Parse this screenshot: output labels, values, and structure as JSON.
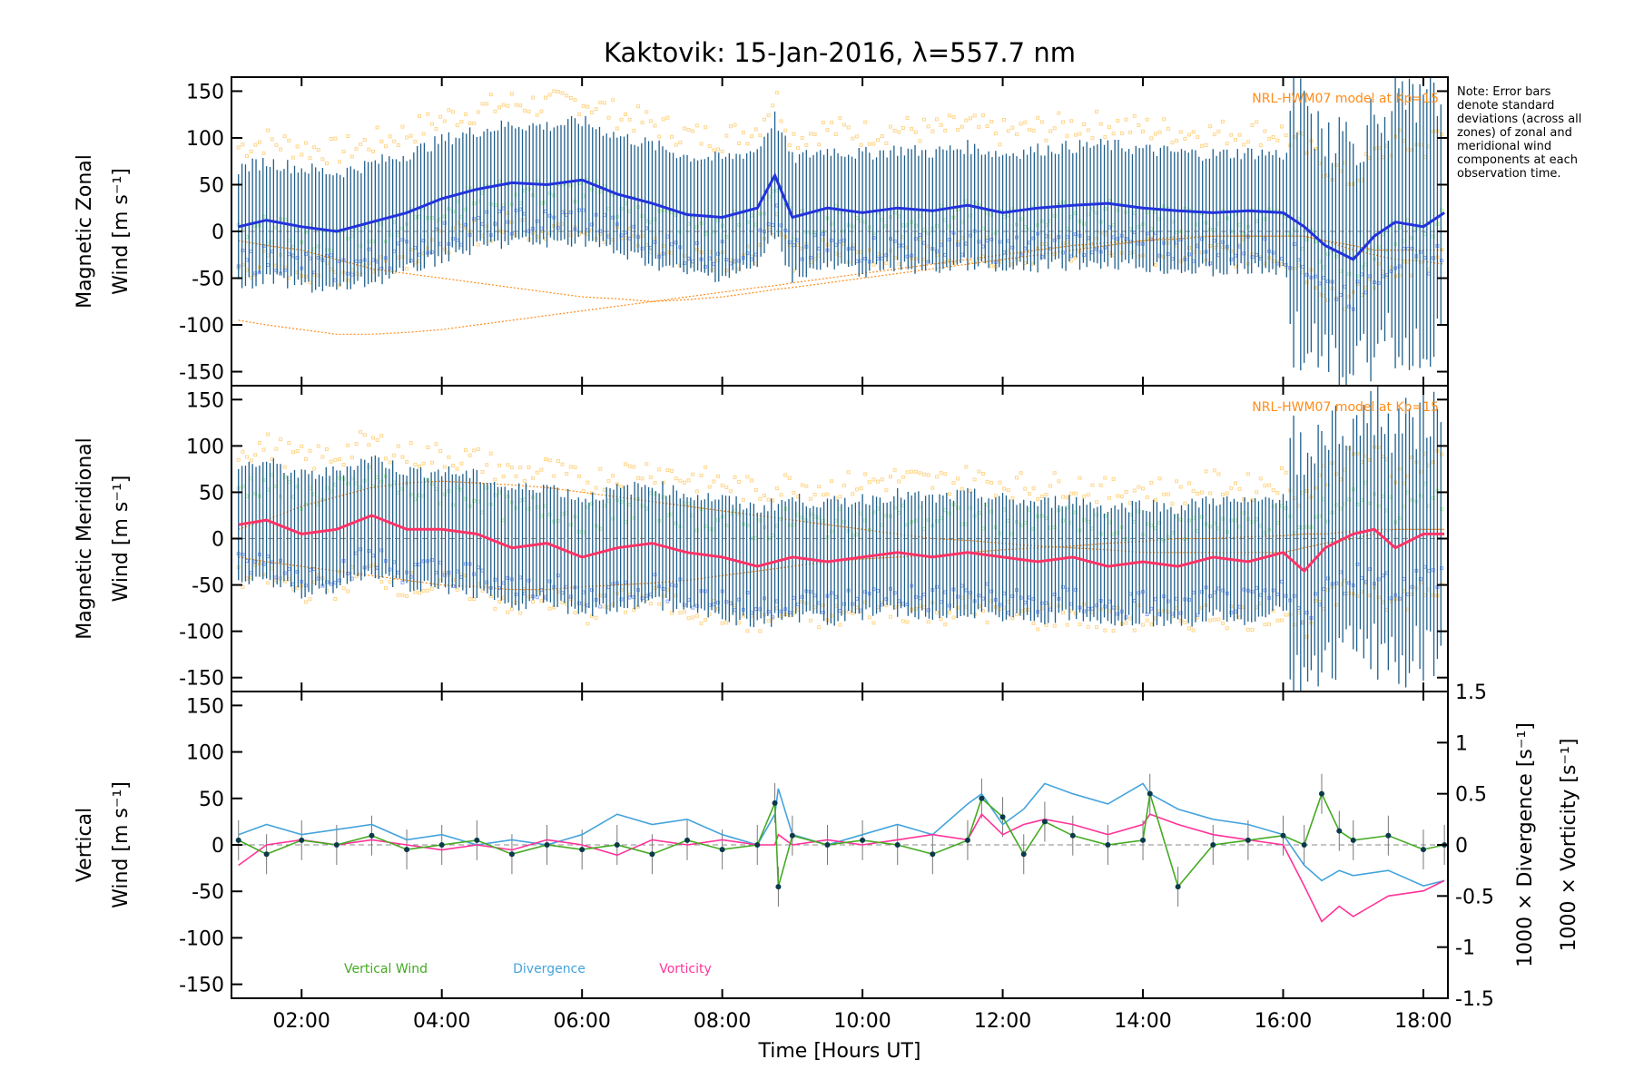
{
  "colors": {
    "zonal": "#2233dd",
    "meridional": "#ff3366",
    "error_bar": "#1f5f8b",
    "model": "#ff8c1a",
    "zone_yellow": "#ffd68a",
    "zone_green": "#b8f0b0",
    "zone_blue": "#8aa8ff",
    "vertical": "#44aa22",
    "divergence": "#44a3dd",
    "vorticity": "#ff3399",
    "axis": "#000000",
    "zero_line": "#888888"
  },
  "chart_data": [
    {
      "type": "line",
      "panel": "zonal",
      "title": "Kaktovik: 15-Jan-2016, λ=557.7 nm",
      "ylabel": "Magnetic Zonal",
      "ylabel_units": "Wind [m s⁻¹]",
      "ylim": [
        -165,
        165
      ],
      "yticks": [
        150,
        100,
        50,
        0,
        -50,
        -100,
        -150
      ],
      "model_label": "NRL-HWM07 model at Kp=15",
      "x": [
        1.1,
        1.5,
        2.0,
        2.5,
        3.0,
        3.5,
        4.0,
        4.5,
        5.0,
        5.5,
        6.0,
        6.5,
        7.0,
        7.5,
        8.0,
        8.5,
        8.75,
        9.0,
        9.5,
        10.0,
        10.5,
        11.0,
        11.5,
        12.0,
        12.5,
        13.0,
        13.5,
        14.0,
        14.5,
        15.0,
        15.5,
        16.0,
        16.3,
        16.6,
        17.0,
        17.3,
        17.6,
        18.0,
        18.3
      ],
      "series": [
        {
          "values": [
            5,
            12,
            5,
            0,
            10,
            20,
            35,
            45,
            52,
            50,
            55,
            40,
            30,
            18,
            15,
            25,
            60,
            15,
            25,
            20,
            25,
            22,
            28,
            20,
            25,
            28,
            30,
            25,
            22,
            20,
            22,
            20,
            5,
            -15,
            -30,
            -5,
            10,
            5,
            20
          ]
        }
      ],
      "model_curves": [
        [
          -95,
          -100,
          -105,
          -110,
          -110,
          -108,
          -105,
          -100,
          -95,
          -90,
          -85,
          -80,
          -75,
          -70,
          -65,
          -60,
          -58,
          -55,
          -50,
          -45,
          -40,
          -35,
          -30,
          -25,
          -20,
          -15,
          -12,
          -10,
          -8,
          -5,
          -5,
          -5,
          -5,
          -10,
          -20,
          -25,
          -30,
          -32,
          -35
        ],
        [
          -10,
          -15,
          -20,
          -30,
          -40,
          -45,
          -50,
          -55,
          -60,
          -65,
          -70,
          -72,
          -75,
          -73,
          -70,
          -65,
          -62,
          -60,
          -55,
          -50,
          -45,
          -40,
          -35,
          -30,
          -25,
          -20,
          -15,
          -10,
          -5,
          -5,
          -5,
          -5,
          -5,
          -10,
          -15,
          -20,
          -20,
          -20,
          -20
        ]
      ]
    },
    {
      "type": "line",
      "panel": "meridional",
      "ylabel": "Magnetic Meridional",
      "ylabel_units": "Wind [m s⁻¹]",
      "ylim": [
        -165,
        165
      ],
      "yticks": [
        150,
        100,
        50,
        0,
        -50,
        -100,
        -150
      ],
      "model_label": "NRL-HWM07 model at Kp=15",
      "x": [
        1.1,
        1.5,
        2.0,
        2.5,
        3.0,
        3.5,
        4.0,
        4.5,
        5.0,
        5.5,
        6.0,
        6.5,
        7.0,
        7.5,
        8.0,
        8.5,
        9.0,
        9.5,
        10.0,
        10.5,
        11.0,
        11.5,
        12.0,
        12.5,
        13.0,
        13.5,
        14.0,
        14.5,
        15.0,
        15.5,
        16.0,
        16.3,
        16.6,
        17.0,
        17.3,
        17.6,
        18.0,
        18.3
      ],
      "series": [
        {
          "values": [
            15,
            20,
            5,
            10,
            25,
            10,
            10,
            5,
            -10,
            -5,
            -20,
            -10,
            -5,
            -15,
            -20,
            -30,
            -20,
            -25,
            -20,
            -15,
            -20,
            -15,
            -20,
            -25,
            -20,
            -30,
            -25,
            -30,
            -20,
            -25,
            -15,
            -35,
            -10,
            5,
            10,
            -10,
            5,
            5
          ]
        }
      ],
      "model_curves": [
        [
          -20,
          -25,
          -30,
          -35,
          -40,
          -45,
          -50,
          -52,
          -55,
          -55,
          -52,
          -50,
          -48,
          -45,
          -40,
          -35,
          -30,
          -25,
          -22,
          -20,
          -18,
          -15,
          -12,
          -10,
          -8,
          -5,
          -3,
          0,
          0,
          2,
          3,
          5,
          5,
          8,
          10,
          10,
          10,
          10
        ],
        [
          10,
          20,
          35,
          45,
          55,
          60,
          62,
          60,
          58,
          55,
          50,
          45,
          40,
          35,
          30,
          25,
          20,
          15,
          10,
          5,
          0,
          -2,
          -5,
          -8,
          -10,
          -12,
          -15,
          -15,
          -15,
          -15,
          -15,
          -10,
          -5,
          0,
          5,
          10,
          10,
          10
        ]
      ]
    },
    {
      "type": "line",
      "panel": "vertical",
      "ylabel": "Vertical",
      "ylabel_units": "Wind [m s⁻¹]",
      "ylim": [
        -165,
        165
      ],
      "yticks": [
        150,
        100,
        50,
        0,
        -50,
        -100,
        -150
      ],
      "y2label_divergence": "1000 × Divergence [s⁻¹]",
      "y2label_vorticity": "1000 × Vorticity [s⁻¹]",
      "y2lim": [
        -1.5,
        1.5
      ],
      "y2ticks": [
        1.5,
        1.0,
        0.5,
        0.0,
        -0.5,
        -1.0,
        -1.5
      ],
      "legend": [
        "Vertical Wind",
        "Divergence",
        "Vorticity"
      ],
      "x": [
        1.1,
        1.5,
        2.0,
        2.5,
        3.0,
        3.5,
        4.0,
        4.5,
        5.0,
        5.5,
        6.0,
        6.5,
        7.0,
        7.5,
        8.0,
        8.5,
        8.75,
        8.8,
        9.0,
        9.5,
        10.0,
        10.5,
        11.0,
        11.5,
        11.7,
        12.0,
        12.3,
        12.6,
        13.0,
        13.5,
        14.0,
        14.1,
        14.5,
        15.0,
        15.5,
        16.0,
        16.3,
        16.55,
        16.8,
        17.0,
        17.5,
        18.0,
        18.3
      ],
      "series": [
        {
          "name": "Vertical Wind",
          "values": [
            5,
            -10,
            5,
            0,
            10,
            -5,
            0,
            5,
            -10,
            0,
            -5,
            0,
            -10,
            5,
            -5,
            0,
            45,
            -45,
            10,
            0,
            5,
            0,
            -10,
            5,
            50,
            30,
            -10,
            25,
            10,
            0,
            5,
            55,
            -45,
            0,
            5,
            10,
            0,
            55,
            15,
            5,
            10,
            -5,
            0
          ]
        },
        {
          "name": "Divergence",
          "axis": "right",
          "values": [
            0.1,
            0.2,
            0.1,
            0.15,
            0.2,
            0.05,
            0.1,
            0.0,
            0.05,
            0.0,
            0.1,
            0.3,
            0.2,
            0.25,
            0.1,
            0.0,
            0.3,
            0.55,
            0.1,
            0.0,
            0.1,
            0.2,
            0.1,
            0.4,
            0.5,
            0.2,
            0.35,
            0.6,
            0.5,
            0.4,
            0.6,
            0.5,
            0.35,
            0.25,
            0.2,
            0.1,
            -0.2,
            -0.35,
            -0.25,
            -0.3,
            -0.25,
            -0.4,
            -0.35
          ]
        },
        {
          "name": "Vorticity",
          "axis": "right",
          "values": [
            -0.2,
            0.0,
            0.05,
            0.0,
            0.05,
            0.0,
            -0.05,
            0.0,
            -0.05,
            0.05,
            0.0,
            -0.1,
            0.05,
            0.0,
            0.05,
            0.0,
            0.0,
            0.1,
            0.0,
            0.05,
            0.0,
            0.05,
            0.1,
            0.05,
            0.3,
            0.1,
            0.2,
            0.25,
            0.2,
            0.1,
            0.2,
            0.3,
            0.2,
            0.1,
            0.05,
            0.0,
            -0.4,
            -0.75,
            -0.6,
            -0.7,
            -0.5,
            -0.45,
            -0.35
          ]
        }
      ]
    }
  ],
  "xaxis": {
    "label": "Time [Hours UT]",
    "xlim": [
      1.0,
      18.35
    ],
    "ticks": [
      2,
      4,
      6,
      8,
      10,
      12,
      14,
      16,
      18
    ],
    "tick_labels": [
      "02:00",
      "04:00",
      "06:00",
      "08:00",
      "10:00",
      "12:00",
      "14:00",
      "16:00",
      "18:00"
    ]
  },
  "note": "Note: Error bars denote standard deviations (across all zones) of zonal and meridional wind components at each observation time."
}
